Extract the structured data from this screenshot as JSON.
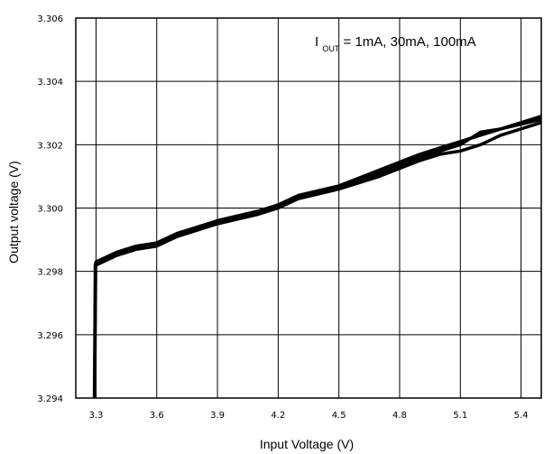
{
  "chart_data": {
    "type": "line",
    "xlabel": "Input Voltage (V)",
    "ylabel": "Output voltage (V)",
    "annotation": {
      "prefix": "I",
      "subscript": "OUT",
      "text": " = 1mA, 30mA, 100mA"
    },
    "xlim": [
      3.2,
      5.5
    ],
    "ylim": [
      3.294,
      3.306
    ],
    "x_ticks": [
      3.3,
      3.6,
      3.9,
      4.2,
      4.5,
      4.8,
      5.1,
      5.4
    ],
    "x_tick_labels": [
      "3.3",
      "3.6",
      "3.9",
      "4.2",
      "4.5",
      "4.8",
      "5.1",
      "5.4"
    ],
    "y_ticks": [
      3.294,
      3.296,
      3.298,
      3.3,
      3.302,
      3.304,
      3.306
    ],
    "y_tick_labels": [
      "3.294",
      "3.296",
      "3.298",
      "3.300",
      "3.302",
      "3.304",
      "3.306"
    ],
    "grid": true,
    "series": [
      {
        "x": [
          3.292,
          3.294,
          3.296,
          3.296,
          3.3,
          3.4,
          3.5,
          3.6,
          3.7,
          3.9,
          4.1,
          4.2,
          4.3,
          4.5,
          4.7,
          4.9,
          5.0,
          5.1,
          5.2,
          5.3,
          5.5
        ],
        "y": [
          3.294,
          3.296,
          3.2978,
          3.2982,
          3.2983,
          3.2986,
          3.2988,
          3.2989,
          3.2992,
          3.2996,
          3.2999,
          3.3001,
          3.3004,
          3.3007,
          3.3012,
          3.3017,
          3.3019,
          3.3021,
          3.3023,
          3.3025,
          3.3029
        ]
      },
      {
        "x": [
          3.293,
          3.295,
          3.297,
          3.297,
          3.3,
          3.4,
          3.5,
          3.6,
          3.7,
          3.9,
          4.1,
          4.2,
          4.3,
          4.5,
          4.7,
          4.9,
          5.0,
          5.1,
          5.2,
          5.3,
          5.5
        ],
        "y": [
          3.294,
          3.296,
          3.2978,
          3.2982,
          3.2982,
          3.2985,
          3.2987,
          3.2988,
          3.2991,
          3.2996,
          3.2999,
          3.3001,
          3.3003,
          3.3006,
          3.3011,
          3.3016,
          3.3018,
          3.302,
          3.3024,
          3.3025,
          3.3028
        ]
      },
      {
        "x": [
          3.294,
          3.296,
          3.298,
          3.298,
          3.3,
          3.4,
          3.5,
          3.6,
          3.7,
          3.9,
          4.1,
          4.2,
          4.3,
          4.5,
          4.7,
          4.9,
          5.0,
          5.1,
          5.2,
          5.3,
          5.5
        ],
        "y": [
          3.294,
          3.296,
          3.2978,
          3.2981,
          3.2982,
          3.2985,
          3.2987,
          3.2988,
          3.2991,
          3.2995,
          3.2998,
          3.3,
          3.3003,
          3.3006,
          3.301,
          3.3015,
          3.3017,
          3.3018,
          3.302,
          3.3023,
          3.3027
        ]
      }
    ]
  }
}
